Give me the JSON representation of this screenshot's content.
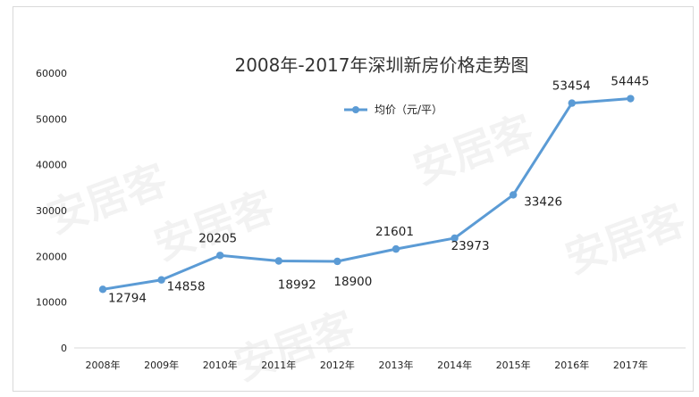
{
  "chart_data": {
    "type": "line",
    "title": "2008年-2017年深圳新房价格走势图",
    "categories": [
      "2008年",
      "2009年",
      "2010年",
      "2011年",
      "2012年",
      "2013年",
      "2014年",
      "2015年",
      "2016年",
      "2017年"
    ],
    "series": [
      {
        "name": "均价（元/平）",
        "values": [
          12794,
          14858,
          20205,
          18992,
          18900,
          21601,
          23973,
          33426,
          53454,
          54445
        ],
        "color": "#5B9BD5"
      }
    ],
    "ylim": [
      0,
      60000
    ],
    "yticks": [
      "0",
      "10000",
      "20000",
      "30000",
      "40000",
      "50000",
      "60000"
    ],
    "legend_position": "top-center",
    "grid": false
  },
  "watermark": "安居客"
}
